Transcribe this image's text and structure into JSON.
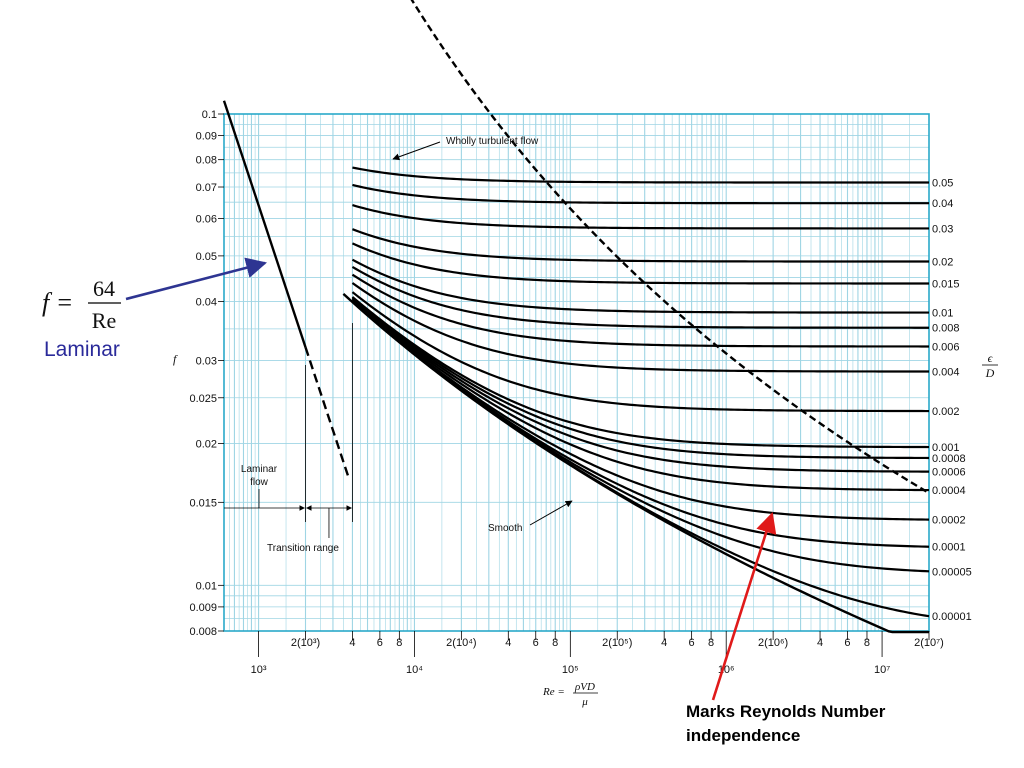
{
  "chart_data": {
    "type": "line",
    "x_scale": "log",
    "y_scale": "log",
    "xlim": [
      600,
      20000000
    ],
    "ylim": [
      0.008,
      0.1
    ],
    "grid": true,
    "ylabel": "f",
    "xlabel": {
      "prefix": "Re =",
      "numerator": "ρVD",
      "denominator": "μ"
    },
    "right_axis_label": {
      "numerator": "ϵ",
      "denominator": "D"
    },
    "y_ticks": [
      {
        "value": 0.1,
        "label": "0.1"
      },
      {
        "value": 0.09,
        "label": "0.09"
      },
      {
        "value": 0.08,
        "label": "0.08"
      },
      {
        "value": 0.07,
        "label": "0.07"
      },
      {
        "value": 0.06,
        "label": "0.06"
      },
      {
        "value": 0.05,
        "label": "0.05"
      },
      {
        "value": 0.04,
        "label": "0.04"
      },
      {
        "value": 0.03,
        "label": "0.03"
      },
      {
        "value": 0.025,
        "label": "0.025"
      },
      {
        "value": 0.02,
        "label": "0.02"
      },
      {
        "value": 0.015,
        "label": "0.015"
      },
      {
        "value": 0.01,
        "label": "0.01"
      },
      {
        "value": 0.009,
        "label": "0.009"
      },
      {
        "value": 0.008,
        "label": "0.008"
      }
    ],
    "x_minor_labels": [
      {
        "value": 2000,
        "label": "2(10³)"
      },
      {
        "value": 4000,
        "label": "4"
      },
      {
        "value": 6000,
        "label": "6"
      },
      {
        "value": 8000,
        "label": "8"
      },
      {
        "value": 20000,
        "label": "2(10⁴)"
      },
      {
        "value": 40000,
        "label": "4"
      },
      {
        "value": 60000,
        "label": "6"
      },
      {
        "value": 80000,
        "label": "8"
      },
      {
        "value": 200000,
        "label": "2(10⁵)"
      },
      {
        "value": 400000,
        "label": "4"
      },
      {
        "value": 600000,
        "label": "6"
      },
      {
        "value": 800000,
        "label": "8"
      },
      {
        "value": 2000000,
        "label": "2(10⁶)"
      },
      {
        "value": 4000000,
        "label": "4"
      },
      {
        "value": 6000000,
        "label": "6"
      },
      {
        "value": 8000000,
        "label": "8"
      },
      {
        "value": 20000000,
        "label": "2(10⁷)"
      },
      {
        "value": 40000000,
        "label": "4"
      },
      {
        "value": 60000000,
        "label": "6"
      },
      {
        "value": 80000000,
        "label": "8"
      }
    ],
    "x_decade_labels": [
      {
        "value": 1000,
        "label": "10³"
      },
      {
        "value": 10000,
        "label": "10⁴"
      },
      {
        "value": 100000,
        "label": "10⁵"
      },
      {
        "value": 1000000,
        "label": "10⁶"
      },
      {
        "value": 10000000,
        "label": "10⁷"
      }
    ],
    "roughness_curves": [
      {
        "label": "0.05",
        "value": 0.05
      },
      {
        "label": "0.04",
        "value": 0.04
      },
      {
        "label": "0.03",
        "value": 0.03
      },
      {
        "label": "0.02",
        "value": 0.02
      },
      {
        "label": "0.015",
        "value": 0.015
      },
      {
        "label": "0.01",
        "value": 0.01
      },
      {
        "label": "0.008",
        "value": 0.008
      },
      {
        "label": "0.006",
        "value": 0.006
      },
      {
        "label": "0.004",
        "value": 0.004
      },
      {
        "label": "0.002",
        "value": 0.002
      },
      {
        "label": "0.001",
        "value": 0.001
      },
      {
        "label": "0.0008",
        "value": 0.0008
      },
      {
        "label": "0.0006",
        "value": 0.0006
      },
      {
        "label": "0.0004",
        "value": 0.0004
      },
      {
        "label": "0.0002",
        "value": 0.0002
      },
      {
        "label": "0.0001",
        "value": 0.0001
      },
      {
        "label": "0.00005",
        "value": 5e-05
      },
      {
        "label": "0.00001",
        "value": 1e-05
      }
    ],
    "laminar": {
      "points": [
        [
          600,
          0.1067
        ],
        [
          2000,
          0.032
        ]
      ],
      "dashed_points": [
        [
          2000,
          0.032
        ],
        [
          3800,
          0.01684
        ]
      ]
    },
    "smooth_curve": {
      "re_start": 3500,
      "re_end": 20000000
    },
    "transition_range": [
      2000,
      4000
    ],
    "wholly_turbulent_boundary": {
      "re_start": 3900,
      "re_end": 20000000
    },
    "annotations": {
      "wholly_turbulent": "Wholly turbulent flow",
      "laminar_flow_line1": "Laminar",
      "laminar_flow_line2": "flow",
      "transition_range": "Transition range",
      "smooth": "Smooth"
    },
    "overlay": {
      "formula_lhs": "f =",
      "formula_numerator": "64",
      "formula_denominator": "Re",
      "laminar_label": "Laminar",
      "callout_line1": "Marks Reynolds Number",
      "callout_line2": "independence"
    },
    "colors": {
      "grid": "#9fd5e4",
      "frame": "#29a9c9",
      "curve": "#000000",
      "laminar_arrow": "#2e3592",
      "callout_arrow": "#e01a1a",
      "laminar_text": "#2a2a9a"
    }
  }
}
